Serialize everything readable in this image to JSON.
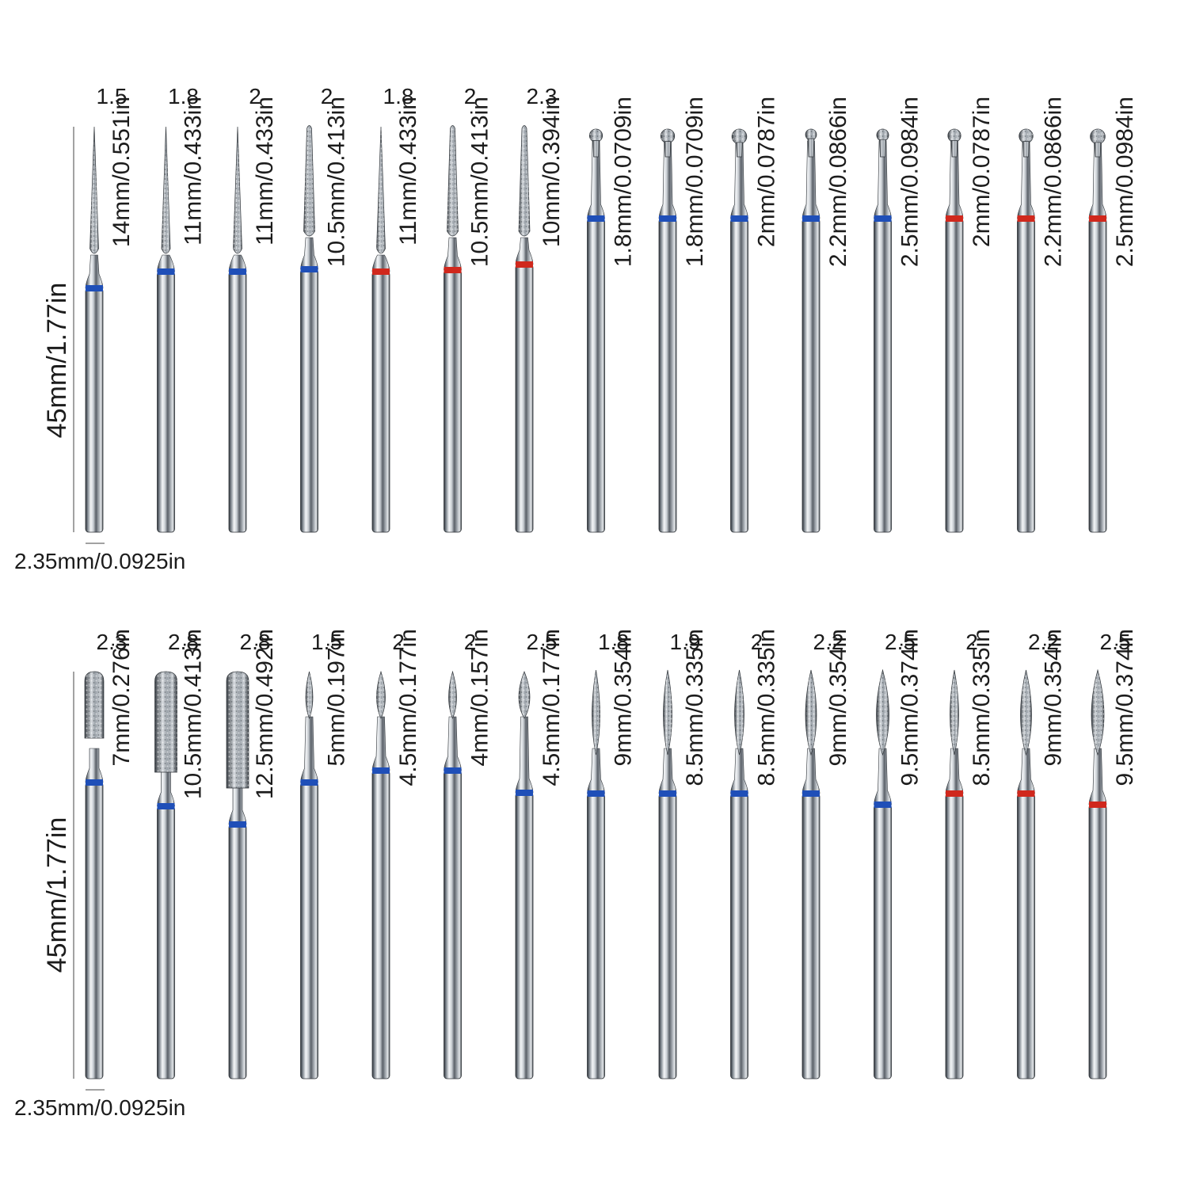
{
  "rows": [
    {
      "length_label": "45mm/1.77in",
      "shank_label": "2.35mm/0.0925in",
      "bits": [
        {
          "head": "needle",
          "tip_diameter": "1.5",
          "length": "14mm/0.551in",
          "band": "blue"
        },
        {
          "head": "needle",
          "tip_diameter": "1.8",
          "length": "11mm/0.433in",
          "band": "blue"
        },
        {
          "head": "needle",
          "tip_diameter": "2",
          "length": "11mm/0.433in",
          "band": "blue"
        },
        {
          "head": "needle-round",
          "tip_diameter": "2",
          "length": "10.5mm/0.413in",
          "band": "blue"
        },
        {
          "head": "needle",
          "tip_diameter": "1.8",
          "length": "11mm/0.433in",
          "band": "red"
        },
        {
          "head": "needle-round",
          "tip_diameter": "2",
          "length": "10.5mm/0.413in",
          "band": "red"
        },
        {
          "head": "needle-round",
          "tip_diameter": "2.3",
          "length": "10mm/0.394in",
          "band": "red"
        },
        {
          "head": "ball",
          "tip_diameter": "",
          "length": "1.8mm/0.0709in",
          "band": "blue"
        },
        {
          "head": "ball",
          "tip_diameter": "",
          "length": "1.8mm/0.0709in",
          "band": "blue"
        },
        {
          "head": "ball",
          "tip_diameter": "",
          "length": "2mm/0.0787in",
          "band": "blue"
        },
        {
          "head": "ball",
          "tip_diameter": "",
          "length": "2.2mm/0.0866in",
          "band": "blue"
        },
        {
          "head": "ball",
          "tip_diameter": "",
          "length": "2.5mm/0.0984in",
          "band": "blue"
        },
        {
          "head": "ball",
          "tip_diameter": "",
          "length": "2mm/0.0787in",
          "band": "red"
        },
        {
          "head": "ball",
          "tip_diameter": "",
          "length": "2.2mm/0.0866in",
          "band": "red"
        },
        {
          "head": "ball",
          "tip_diameter": "",
          "length": "2.5mm/0.0984in",
          "band": "red"
        }
      ]
    },
    {
      "length_label": "45mm/1.77in",
      "shank_label": "2.35mm/0.0925in",
      "bits": [
        {
          "head": "cylinder",
          "tip_diameter": "2.3",
          "length": "7mm/0.276in",
          "band": "blue"
        },
        {
          "head": "cylinder",
          "tip_diameter": "2.8",
          "length": "10.5mm/0.413in",
          "band": "blue"
        },
        {
          "head": "cylinder",
          "tip_diameter": "2.8",
          "length": "12.5mm/0.492in",
          "band": "blue"
        },
        {
          "head": "bud",
          "tip_diameter": "1.5",
          "length": "5mm/0.197in",
          "band": "blue"
        },
        {
          "head": "bud",
          "tip_diameter": "2",
          "length": "4.5mm/0.177in",
          "band": "blue"
        },
        {
          "head": "bud",
          "tip_diameter": "2",
          "length": "4mm/0.157in",
          "band": "blue"
        },
        {
          "head": "bud",
          "tip_diameter": "2.5",
          "length": "4.5mm/0.177in",
          "band": "blue"
        },
        {
          "head": "flame",
          "tip_diameter": "1.8",
          "length": "9mm/0.354in",
          "band": "blue"
        },
        {
          "head": "flame",
          "tip_diameter": "1.9",
          "length": "8.5mm/0.335in",
          "band": "blue"
        },
        {
          "head": "flame",
          "tip_diameter": "2",
          "length": "8.5mm/0.335in",
          "band": "blue"
        },
        {
          "head": "flame",
          "tip_diameter": "2.2",
          "length": "9mm/0.354in",
          "band": "blue"
        },
        {
          "head": "flame",
          "tip_diameter": "2.5",
          "length": "9.5mm/0.374in",
          "band": "blue"
        },
        {
          "head": "flame",
          "tip_diameter": "2",
          "length": "8.5mm/0.335in",
          "band": "red"
        },
        {
          "head": "flame",
          "tip_diameter": "2.2",
          "length": "9mm/0.354in",
          "band": "red"
        },
        {
          "head": "flame",
          "tip_diameter": "2.5",
          "length": "9.5mm/0.374in",
          "band": "red"
        }
      ]
    }
  ],
  "colors": {
    "blue_band": "#1f4fb8",
    "red_band": "#d0281d",
    "label_text": "#1c1c1c",
    "shank_light": "#f4f6f8",
    "shank_dark": "#2b3036"
  }
}
